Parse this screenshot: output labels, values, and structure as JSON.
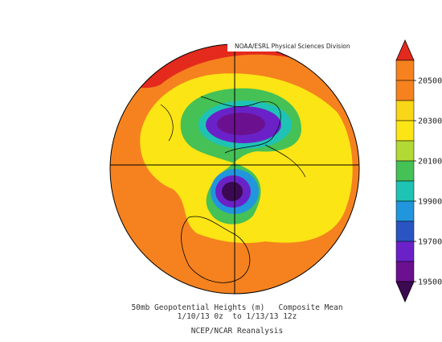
{
  "header": {
    "title": "NOAA/ESRL Physical Sciences Division"
  },
  "colorbar": {
    "ticks": [
      "20500",
      "20300",
      "20100",
      "19900",
      "19700",
      "19500"
    ],
    "colors": [
      "#e42a1d",
      "#f5821f",
      "#f5821f",
      "#f9d617",
      "#fbe514",
      "#b3d935",
      "#45c156",
      "#1fc3b5",
      "#2196dc",
      "#2a54c2",
      "#6a22c8",
      "#6b1190",
      "#3c0a52"
    ]
  },
  "caption": {
    "lines": [
      "50mb Geopotential Heights (m)   Composite Mean",
      "1/10/13 0z  to 1/13/13 12z",
      "NCEP/NCAR Reanalysis"
    ]
  }
}
